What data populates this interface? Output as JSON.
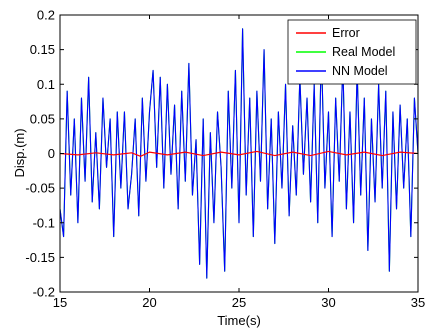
{
  "chart_data": {
    "type": "line",
    "xlabel": "Time(s)",
    "ylabel": "Disp.(m)",
    "xlim": [
      15,
      35
    ],
    "ylim": [
      -0.2,
      0.2
    ],
    "xticks": [
      15,
      20,
      25,
      30,
      35
    ],
    "xtick_labels": [
      "15",
      "20",
      "25",
      "30",
      "35"
    ],
    "yticks": [
      -0.2,
      -0.15,
      -0.1,
      -0.05,
      0,
      0.05,
      0.1,
      0.15,
      0.2
    ],
    "ytick_labels": [
      "-0.2",
      "-0.15",
      "-0.1",
      "-0.05",
      "0",
      "0.05",
      "0.1",
      "0.15",
      "0.2"
    ],
    "grid": false,
    "legend_position": "top-right",
    "legend": [
      "Error",
      "Real Model",
      "NN Model"
    ],
    "series": [
      {
        "name": "Error",
        "color": "#ff0000",
        "x": [
          15,
          16,
          17,
          18,
          19,
          19.5,
          20,
          21,
          22,
          23,
          24,
          25,
          26,
          27,
          28,
          29,
          30,
          31,
          32,
          33,
          34,
          35
        ],
        "y": [
          0,
          -0.002,
          0.001,
          -0.002,
          0.001,
          -0.004,
          0.002,
          -0.002,
          0.002,
          -0.003,
          0.002,
          -0.002,
          0.003,
          -0.003,
          0.002,
          -0.003,
          0.003,
          -0.002,
          0.002,
          -0.003,
          0.002,
          0
        ]
      },
      {
        "name": "Real Model",
        "color": "#00ff00",
        "x": [
          15.0,
          15.2,
          15.4,
          15.6,
          15.8,
          16.0,
          16.2,
          16.4,
          16.6,
          16.8,
          17.0,
          17.2,
          17.4,
          17.6,
          17.8,
          18.0,
          18.2,
          18.4,
          18.6,
          18.8,
          19.0,
          19.2,
          19.4,
          19.6,
          19.8,
          20.0,
          20.2,
          20.4,
          20.6,
          20.8,
          21.0,
          21.2,
          21.4,
          21.6,
          21.8,
          22.0,
          22.2,
          22.4,
          22.6,
          22.8,
          23.0,
          23.2,
          23.4,
          23.6,
          23.8,
          24.0,
          24.2,
          24.4,
          24.6,
          24.8,
          25.0,
          25.2,
          25.4,
          25.6,
          25.8,
          26.0,
          26.2,
          26.4,
          26.6,
          26.8,
          27.0,
          27.2,
          27.4,
          27.6,
          27.8,
          28.0,
          28.2,
          28.4,
          28.6,
          28.8,
          29.0,
          29.2,
          29.4,
          29.6,
          29.8,
          30.0,
          30.2,
          30.4,
          30.6,
          30.8,
          31.0,
          31.2,
          31.4,
          31.6,
          31.8,
          32.0,
          32.2,
          32.4,
          32.6,
          32.8,
          33.0,
          33.2,
          33.4,
          33.6,
          33.8,
          34.0,
          34.2,
          34.4,
          34.6,
          34.8,
          35.0
        ],
        "y": [
          -0.08,
          -0.12,
          0.09,
          -0.06,
          0.05,
          -0.1,
          0.08,
          -0.04,
          0.11,
          -0.07,
          0.03,
          -0.08,
          0.08,
          -0.02,
          0.05,
          -0.12,
          0.06,
          -0.05,
          0.06,
          -0.08,
          -0.03,
          0.05,
          -0.09,
          0.08,
          -0.04,
          0.06,
          0.12,
          -0.02,
          0.11,
          -0.05,
          0.1,
          -0.03,
          0.07,
          -0.08,
          0.09,
          -0.04,
          0.13,
          -0.06,
          0.02,
          -0.16,
          0.05,
          -0.18,
          0.03,
          -0.1,
          0.06,
          -0.02,
          -0.17,
          0.09,
          -0.05,
          0.12,
          -0.1,
          0.18,
          -0.06,
          0.08,
          -0.12,
          0.09,
          -0.04,
          0.15,
          -0.08,
          0.05,
          -0.13,
          0.06,
          -0.05,
          0.1,
          -0.09,
          0.04,
          -0.06,
          0.11,
          -0.03,
          0.08,
          -0.07,
          0.1,
          -0.1,
          0.15,
          -0.05,
          0.06,
          -0.12,
          0.08,
          -0.04,
          0.13,
          -0.08,
          0.06,
          -0.1,
          0.12,
          -0.06,
          0.08,
          -0.14,
          0.05,
          -0.07,
          0.1,
          -0.05,
          0.09,
          -0.17,
          0.06,
          -0.08,
          0.07,
          -0.05,
          0.05,
          -0.12,
          0.08,
          0.0
        ]
      },
      {
        "name": "NN Model",
        "color": "#0000ff",
        "x": [
          15.0,
          15.2,
          15.4,
          15.6,
          15.8,
          16.0,
          16.2,
          16.4,
          16.6,
          16.8,
          17.0,
          17.2,
          17.4,
          17.6,
          17.8,
          18.0,
          18.2,
          18.4,
          18.6,
          18.8,
          19.0,
          19.2,
          19.4,
          19.6,
          19.8,
          20.0,
          20.2,
          20.4,
          20.6,
          20.8,
          21.0,
          21.2,
          21.4,
          21.6,
          21.8,
          22.0,
          22.2,
          22.4,
          22.6,
          22.8,
          23.0,
          23.2,
          23.4,
          23.6,
          23.8,
          24.0,
          24.2,
          24.4,
          24.6,
          24.8,
          25.0,
          25.2,
          25.4,
          25.6,
          25.8,
          26.0,
          26.2,
          26.4,
          26.6,
          26.8,
          27.0,
          27.2,
          27.4,
          27.6,
          27.8,
          28.0,
          28.2,
          28.4,
          28.6,
          28.8,
          29.0,
          29.2,
          29.4,
          29.6,
          29.8,
          30.0,
          30.2,
          30.4,
          30.6,
          30.8,
          31.0,
          31.2,
          31.4,
          31.6,
          31.8,
          32.0,
          32.2,
          32.4,
          32.6,
          32.8,
          33.0,
          33.2,
          33.4,
          33.6,
          33.8,
          34.0,
          34.2,
          34.4,
          34.6,
          34.8,
          35.0
        ],
        "y": [
          -0.08,
          -0.12,
          0.09,
          -0.06,
          0.05,
          -0.1,
          0.08,
          -0.04,
          0.11,
          -0.07,
          0.03,
          -0.08,
          0.08,
          -0.02,
          0.05,
          -0.12,
          0.06,
          -0.05,
          0.06,
          -0.08,
          -0.03,
          0.05,
          -0.09,
          0.08,
          -0.04,
          0.06,
          0.12,
          -0.02,
          0.11,
          -0.05,
          0.1,
          -0.03,
          0.07,
          -0.08,
          0.09,
          -0.04,
          0.13,
          -0.06,
          0.02,
          -0.16,
          0.05,
          -0.18,
          0.03,
          -0.1,
          0.06,
          -0.02,
          -0.17,
          0.09,
          -0.05,
          0.12,
          -0.1,
          0.18,
          -0.06,
          0.08,
          -0.12,
          0.09,
          -0.04,
          0.15,
          -0.08,
          0.05,
          -0.13,
          0.06,
          -0.05,
          0.1,
          -0.09,
          0.04,
          -0.06,
          0.11,
          -0.03,
          0.08,
          -0.07,
          0.1,
          -0.1,
          0.15,
          -0.05,
          0.06,
          -0.12,
          0.08,
          -0.04,
          0.13,
          -0.08,
          0.06,
          -0.1,
          0.12,
          -0.06,
          0.08,
          -0.14,
          0.05,
          -0.07,
          0.1,
          -0.05,
          0.09,
          -0.17,
          0.06,
          -0.08,
          0.07,
          -0.05,
          0.05,
          -0.12,
          0.08,
          0.0
        ]
      }
    ]
  }
}
